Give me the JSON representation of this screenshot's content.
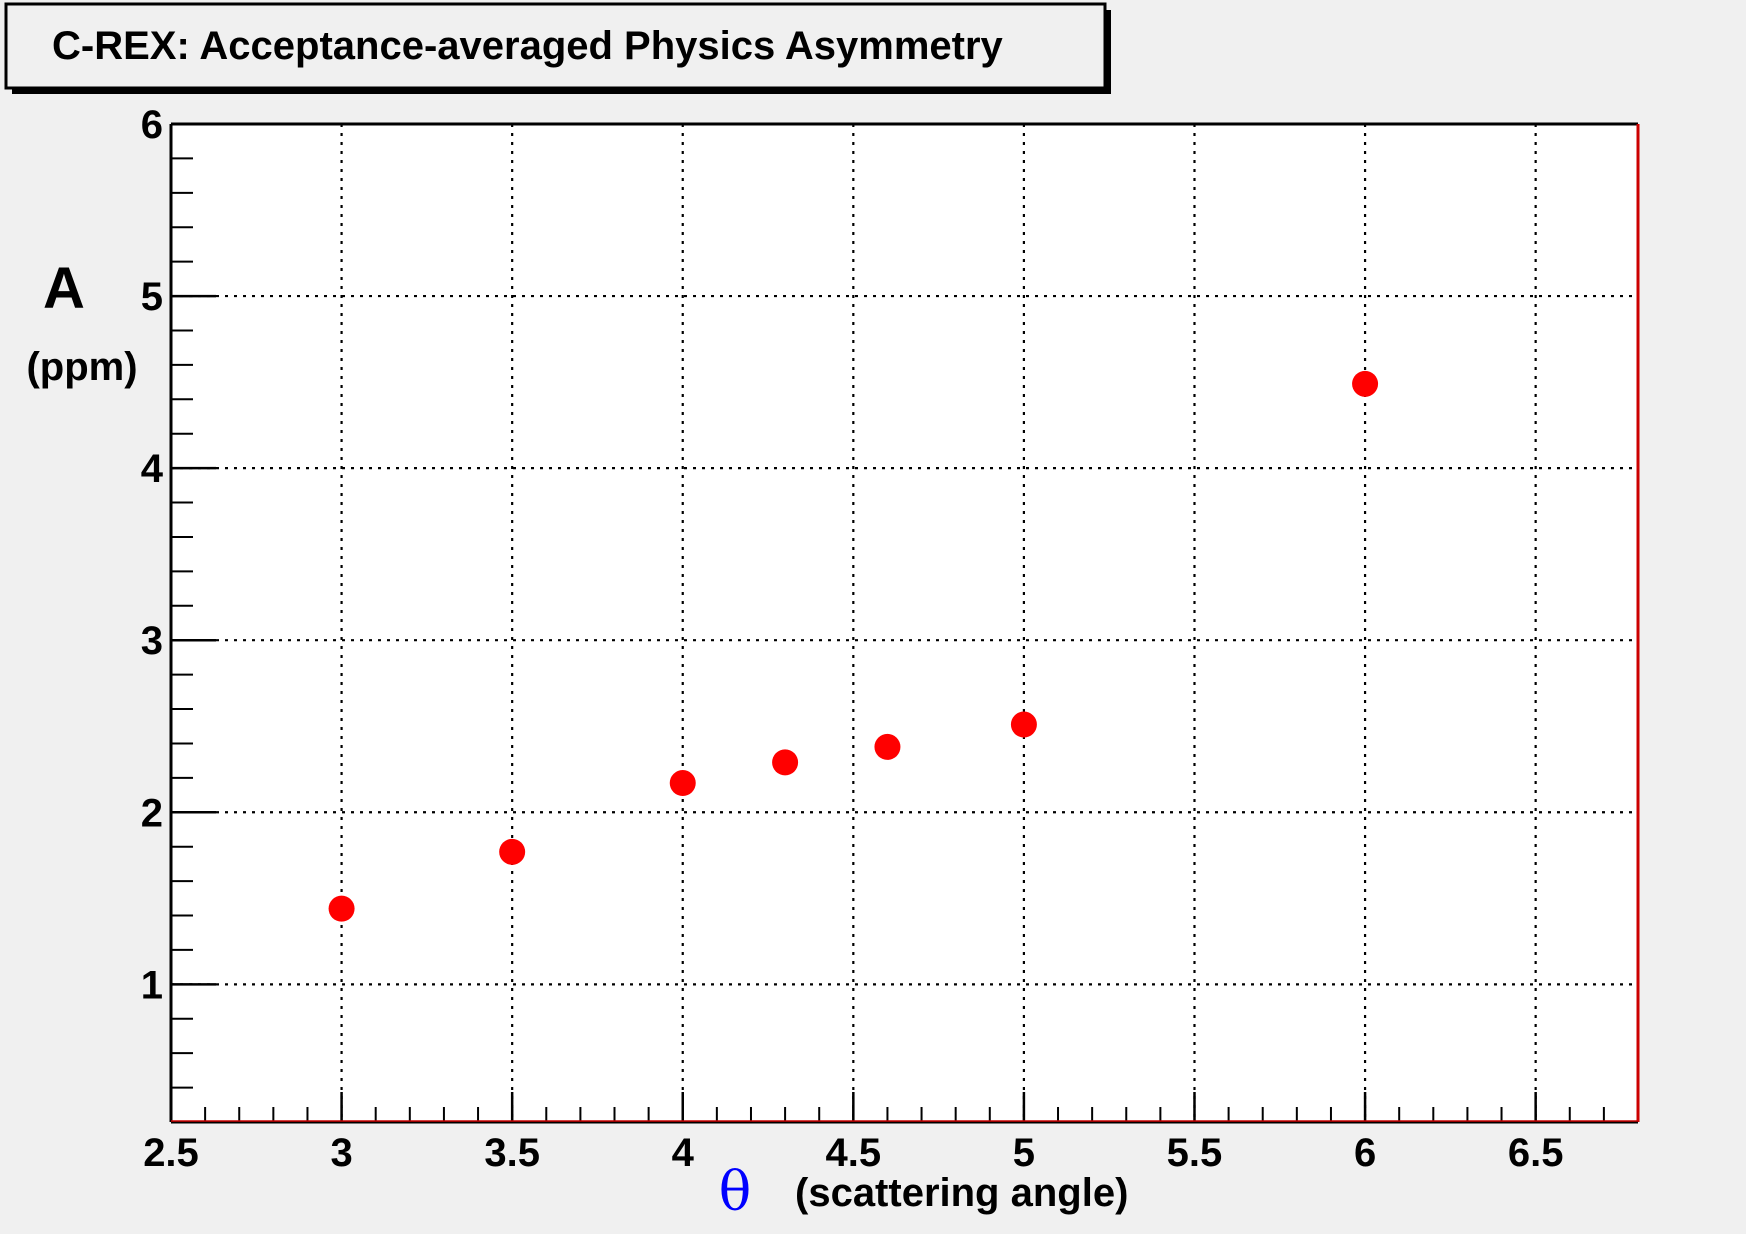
{
  "colors": {
    "background": "#f0f0f0",
    "plot_background": "#ffffff",
    "marker": "#ff0000",
    "theta_symbol": "#0000ff",
    "frame_right_bottom": "#cc0000"
  },
  "chart_data": {
    "type": "scatter",
    "title": "C-REX: Acceptance-averaged Physics Asymmetry",
    "ylabel": "A",
    "ylabel_unit": "(ppm)",
    "xlabel_symbol": "θ",
    "xlabel": "(scattering angle)",
    "xlim": [
      2.5,
      6.8
    ],
    "ylim": [
      0.2,
      6.0
    ],
    "x_ticks": [
      "2.5",
      "3",
      "3.5",
      "4",
      "4.5",
      "5",
      "5.5",
      "6",
      "6.5"
    ],
    "y_ticks": [
      "1",
      "2",
      "3",
      "4",
      "5",
      "6"
    ],
    "grid": true,
    "points": [
      {
        "x": 3.0,
        "y": 1.44
      },
      {
        "x": 3.5,
        "y": 1.77
      },
      {
        "x": 4.0,
        "y": 2.17
      },
      {
        "x": 4.3,
        "y": 2.29
      },
      {
        "x": 4.6,
        "y": 2.38
      },
      {
        "x": 5.0,
        "y": 2.51
      },
      {
        "x": 6.0,
        "y": 4.49
      }
    ]
  }
}
